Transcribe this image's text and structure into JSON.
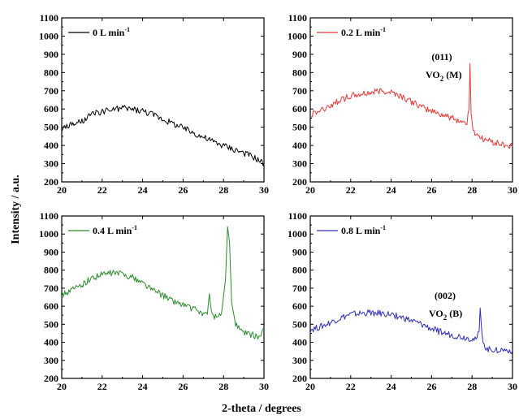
{
  "figure": {
    "ylabel": "Intensity / a.u.",
    "xlabel": "2-theta / degrees"
  },
  "chart_data": [
    {
      "type": "line",
      "xlim": [
        20,
        30
      ],
      "ylim": [
        200,
        1100
      ],
      "x_ticks": [
        "20",
        "22",
        "24",
        "26",
        "28",
        "30"
      ],
      "y_ticks": [
        "200",
        "300",
        "400",
        "500",
        "600",
        "700",
        "800",
        "900",
        "1000",
        "1100"
      ],
      "legend": {
        "value": "0 L min",
        "superscript": "-1",
        "color": "#000000"
      },
      "annotation": null,
      "series": [
        {
          "color": "#000000",
          "x": [
            20,
            20.5,
            21,
            21.5,
            22,
            22.5,
            23,
            23.5,
            24,
            24.5,
            25,
            25.5,
            26,
            26.5,
            27,
            27.5,
            28,
            28.5,
            29,
            29.5,
            30
          ],
          "y": [
            490,
            515,
            530,
            570,
            585,
            595,
            605,
            600,
            590,
            570,
            545,
            520,
            495,
            470,
            445,
            420,
            400,
            380,
            360,
            335,
            300
          ]
        }
      ]
    },
    {
      "type": "line",
      "xlim": [
        20,
        30
      ],
      "ylim": [
        200,
        1100
      ],
      "x_ticks": [
        "20",
        "22",
        "24",
        "26",
        "28",
        "30"
      ],
      "y_ticks": [
        "200",
        "300",
        "400",
        "500",
        "600",
        "700",
        "800",
        "900",
        "1000",
        "1100"
      ],
      "legend": {
        "value": "0.2 L min",
        "superscript": "-1",
        "color": "#e53935"
      },
      "annotation": {
        "miller": "(011)",
        "phase": "VO",
        "subscript": "2",
        "suffix": " (M)"
      },
      "series": [
        {
          "color": "#e53935",
          "x": [
            20,
            20.5,
            21,
            21.5,
            22,
            22.5,
            23,
            23.5,
            24,
            24.5,
            25,
            25.5,
            26,
            26.5,
            27,
            27.5,
            27.75,
            27.85,
            27.9,
            27.95,
            28.05,
            28.5,
            29,
            29.5,
            30
          ],
          "y": [
            570,
            590,
            620,
            650,
            670,
            680,
            690,
            700,
            695,
            670,
            640,
            610,
            590,
            570,
            550,
            530,
            525,
            600,
            850,
            580,
            480,
            440,
            420,
            405,
            395
          ]
        }
      ]
    },
    {
      "type": "line",
      "xlim": [
        20,
        30
      ],
      "ylim": [
        200,
        1100
      ],
      "x_ticks": [
        "20",
        "22",
        "24",
        "26",
        "28",
        "30"
      ],
      "y_ticks": [
        "200",
        "300",
        "400",
        "500",
        "600",
        "700",
        "800",
        "900",
        "1000",
        "1100"
      ],
      "legend": {
        "value": "0.4 L min",
        "superscript": "-1",
        "color": "#2e8b2e"
      },
      "annotation": null,
      "series": [
        {
          "color": "#2e8b2e",
          "x": [
            20,
            20.5,
            21,
            21.5,
            22,
            22.5,
            23,
            23.5,
            24,
            24.5,
            25,
            25.5,
            26,
            26.5,
            27,
            27.2,
            27.3,
            27.4,
            27.6,
            27.9,
            28.1,
            28.2,
            28.3,
            28.4,
            28.6,
            29,
            29.5,
            29.8,
            30
          ],
          "y": [
            660,
            690,
            720,
            755,
            775,
            785,
            780,
            760,
            730,
            690,
            660,
            630,
            610,
            585,
            560,
            555,
            670,
            560,
            540,
            560,
            750,
            1040,
            950,
            620,
            500,
            450,
            440,
            430,
            470
          ]
        }
      ]
    },
    {
      "type": "line",
      "xlim": [
        20,
        30
      ],
      "ylim": [
        200,
        1100
      ],
      "x_ticks": [
        "20",
        "22",
        "24",
        "26",
        "28",
        "30"
      ],
      "y_ticks": [
        "200",
        "300",
        "400",
        "500",
        "600",
        "700",
        "800",
        "900",
        "1000",
        "1100"
      ],
      "legend": {
        "value": "0.8 L min",
        "superscript": "-1",
        "color": "#2d2db5"
      },
      "annotation": {
        "miller": "(002)",
        "phase": "VO",
        "subscript": "2",
        "suffix": " (B)"
      },
      "series": [
        {
          "color": "#2d2db5",
          "x": [
            20,
            20.5,
            21,
            21.5,
            22,
            22.5,
            23,
            23.5,
            24,
            24.5,
            25,
            25.5,
            26,
            26.5,
            27,
            27.5,
            28,
            28.2,
            28.35,
            28.4,
            28.5,
            28.7,
            29,
            29.5,
            30
          ],
          "y": [
            470,
            485,
            510,
            535,
            555,
            560,
            565,
            560,
            555,
            540,
            520,
            500,
            475,
            455,
            440,
            430,
            420,
            410,
            460,
            590,
            430,
            360,
            360,
            358,
            355
          ]
        }
      ]
    }
  ]
}
